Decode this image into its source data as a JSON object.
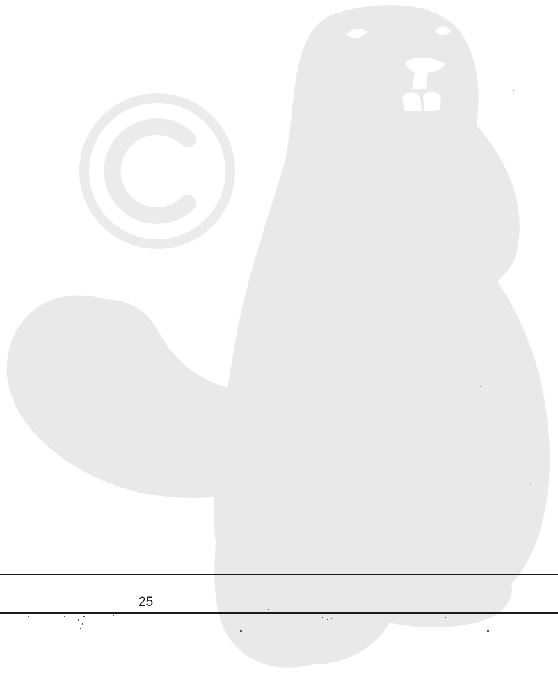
{
  "page": {
    "page_number": "25"
  },
  "watermark": {
    "icon": "beaver-mascot-icon",
    "mark_icon": "copyright-icon",
    "color": "#e9e9e9"
  }
}
